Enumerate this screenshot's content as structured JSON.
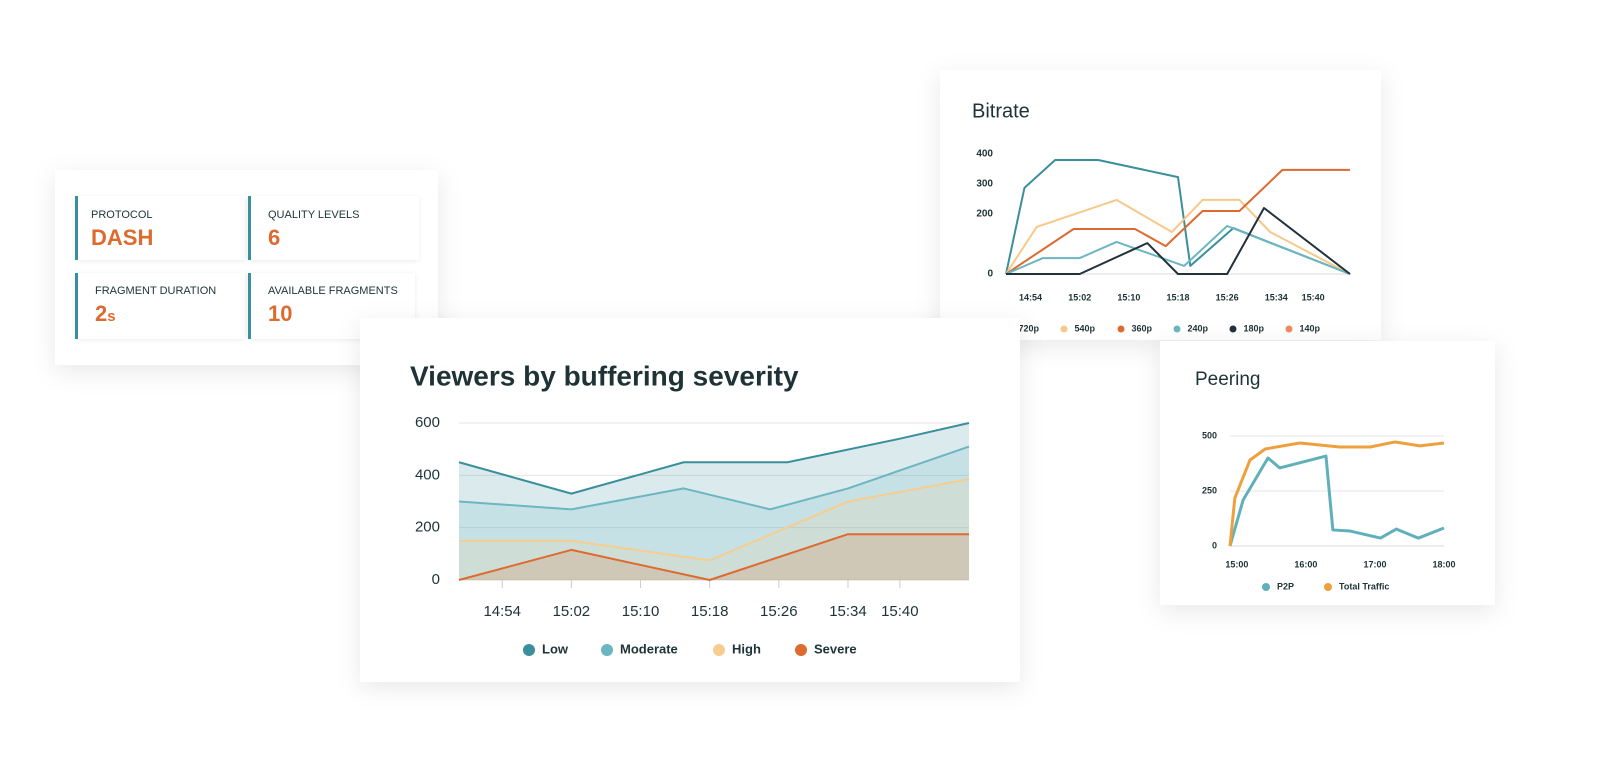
{
  "stats": [
    {
      "label": "PROTOCOL",
      "value": "DASH"
    },
    {
      "label": "QUALITY LEVELS",
      "value": 6
    },
    {
      "label": "FRAGMENT DURATION",
      "value": 2,
      "unit": "s"
    },
    {
      "label": "AVAILABLE FRAGMENTS",
      "value": 10
    }
  ],
  "chart_data": [
    {
      "type": "line",
      "title": "Bitrate",
      "xlim": [
        890,
        946
      ],
      "xticks": [
        {
          "value": 894,
          "label": "14:54"
        },
        {
          "value": 902,
          "label": "15:02"
        },
        {
          "value": 910,
          "label": "15:10"
        },
        {
          "value": 918,
          "label": "15:18"
        },
        {
          "value": 926,
          "label": "15:26"
        },
        {
          "value": 934,
          "label": "15:34"
        },
        {
          "value": 940,
          "label": "15:40"
        }
      ],
      "ylim": [
        0,
        400
      ],
      "yticks": [
        0,
        200,
        300,
        400
      ],
      "grid": false,
      "series": [
        {
          "name": "720p",
          "color": "#3a8f9c",
          "x": [
            890,
            893,
            898,
            905,
            918,
            920,
            927,
            946
          ],
          "values": [
            0,
            287,
            380,
            380,
            323,
            27,
            153,
            0
          ]
        },
        {
          "name": "540p",
          "color": "#f6c98a",
          "x": [
            890,
            895,
            908,
            917,
            922,
            928,
            933,
            946
          ],
          "values": [
            0,
            157,
            247,
            140,
            247,
            247,
            140,
            0
          ]
        },
        {
          "name": "360p",
          "color": "#dd6a2e",
          "x": [
            890,
            901,
            911,
            916,
            922,
            928,
            935,
            946
          ],
          "values": [
            0,
            150,
            150,
            93,
            210,
            210,
            347,
            347
          ]
        },
        {
          "name": "240p",
          "color": "#6bb6c0",
          "x": [
            890,
            896,
            902,
            908,
            919,
            926,
            946
          ],
          "values": [
            0,
            53,
            53,
            107,
            27,
            160,
            0
          ]
        },
        {
          "name": "180p",
          "color": "#22313a",
          "x": [
            890,
            902,
            913,
            918,
            926,
            932,
            946
          ],
          "values": [
            0,
            0,
            103,
            0,
            0,
            220,
            0
          ]
        },
        {
          "name": "140p",
          "color": "#ef8a5a"
        }
      ]
    },
    {
      "type": "area",
      "title": "Viewers by buffering severity",
      "xlim": [
        889,
        948
      ],
      "xticks": [
        {
          "value": 894,
          "label": "14:54"
        },
        {
          "value": 902,
          "label": "15:02"
        },
        {
          "value": 910,
          "label": "15:10"
        },
        {
          "value": 918,
          "label": "15:18"
        },
        {
          "value": 926,
          "label": "15:26"
        },
        {
          "value": 934,
          "label": "15:34"
        },
        {
          "value": 940,
          "label": "15:40"
        }
      ],
      "ylim": [
        0,
        600
      ],
      "yticks": [
        0,
        200,
        400,
        600
      ],
      "grid": true,
      "series": [
        {
          "name": "Low",
          "color": "#3a8f9c",
          "x": [
            889,
            902,
            915,
            927,
            940,
            948
          ],
          "values": [
            450,
            330,
            450,
            450,
            540,
            600
          ]
        },
        {
          "name": "Moderate",
          "color": "#6bb6c0",
          "x": [
            889,
            902,
            915,
            925,
            934,
            948
          ],
          "values": [
            300,
            270,
            350,
            270,
            350,
            510
          ]
        },
        {
          "name": "High",
          "color": "#f6cd8e",
          "x": [
            889,
            902,
            918,
            934,
            948
          ],
          "values": [
            150,
            150,
            75,
            300,
            385
          ]
        },
        {
          "name": "Severe",
          "color": "#dd6a2e",
          "x": [
            889,
            902,
            918,
            934,
            948
          ],
          "values": [
            0,
            115,
            0,
            175,
            175
          ]
        }
      ]
    },
    {
      "type": "line",
      "title": "Peering",
      "xlim": [
        14.9,
        18
      ],
      "xticks": [
        {
          "value": 15,
          "label": "15:00"
        },
        {
          "value": 16,
          "label": "16:00"
        },
        {
          "value": 17,
          "label": "17:00"
        },
        {
          "value": 18,
          "label": "18:00"
        }
      ],
      "ylim": [
        0,
        500
      ],
      "yticks": [
        0,
        250,
        500
      ],
      "grid": true,
      "series": [
        {
          "name": "P2P",
          "color": "#5fb0bb",
          "x": [
            14.9,
            15.09,
            15.45,
            15.62,
            16.29,
            16.39,
            16.64,
            17.08,
            17.31,
            17.63,
            18.0
          ],
          "values": [
            0,
            209,
            400,
            355,
            409,
            73,
            68,
            36,
            77,
            36,
            82
          ]
        },
        {
          "name": "Total Traffic",
          "color": "#eea03c",
          "x": [
            14.9,
            14.97,
            15.19,
            15.41,
            15.91,
            16.49,
            16.93,
            17.29,
            17.65,
            18.0
          ],
          "values": [
            0,
            218,
            391,
            441,
            468,
            450,
            450,
            473,
            455,
            468
          ]
        }
      ]
    }
  ]
}
